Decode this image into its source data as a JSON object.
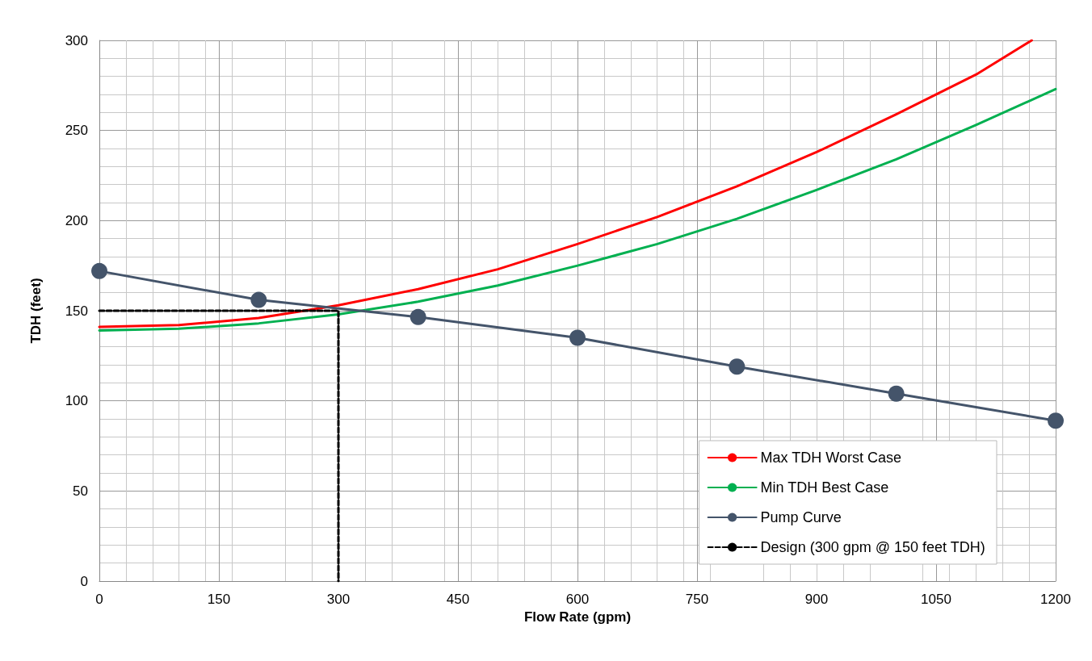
{
  "chart_data": {
    "type": "line",
    "xlabel": "Flow Rate (gpm)",
    "ylabel": "TDH (feet)",
    "xlim": [
      0,
      1200
    ],
    "xticks": [
      0,
      150,
      300,
      450,
      600,
      750,
      900,
      1050,
      1200
    ],
    "ylim": [
      0,
      300
    ],
    "yticks": [
      0,
      50,
      100,
      150,
      200,
      250,
      300
    ],
    "grid": true,
    "legend": "bottom right",
    "series": [
      {
        "name": "Max TDH Worst Case",
        "color": "#ff0000",
        "marker": "none",
        "x": [
          0,
          100,
          200,
          300,
          400,
          500,
          600,
          700,
          800,
          900,
          1000,
          1100,
          1170
        ],
        "values": [
          141,
          142,
          146,
          153,
          162,
          173,
          187,
          202,
          219,
          238,
          259,
          281,
          300
        ]
      },
      {
        "name": "Min TDH Best Case",
        "color": "#00b050",
        "marker": "none",
        "x": [
          0,
          100,
          200,
          300,
          400,
          500,
          600,
          700,
          800,
          900,
          1000,
          1100,
          1200
        ],
        "values": [
          139,
          140,
          143,
          148,
          155,
          164,
          175,
          187,
          201,
          217,
          234,
          253,
          273
        ]
      },
      {
        "name": "Pump Curve",
        "color": "#44546a",
        "marker": "circle",
        "x": [
          0,
          200,
          400,
          600,
          800,
          1000,
          1200
        ],
        "values": [
          172,
          156,
          146.5,
          135,
          119,
          104,
          89
        ]
      },
      {
        "name": "Design (300 gpm @ 150 feet TDH)",
        "color": "#000000",
        "marker": "none",
        "line_style": "dashed",
        "x": [
          0,
          300,
          300
        ],
        "values": [
          150,
          150,
          0
        ]
      }
    ]
  }
}
